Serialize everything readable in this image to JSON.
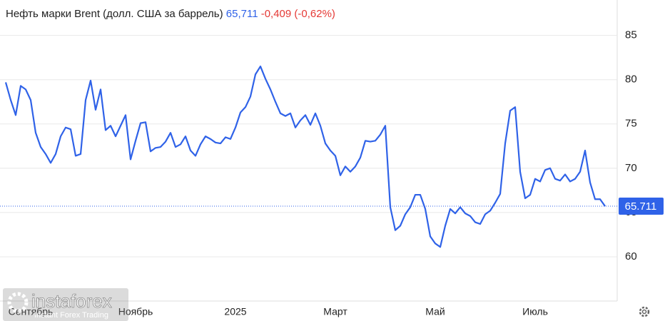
{
  "chart_data": {
    "type": "line",
    "title": "Нефть марки Brent (долл. США за баррель)",
    "price_text": "65,711",
    "change_text": "-0,409 (-0,62%)",
    "watermark": {
      "brand": "instaforex",
      "tagline": "Instant Forex Trading"
    },
    "color": "#2f62e8",
    "change_color": "#e53935",
    "grid": true,
    "ylim": [
      55,
      89
    ],
    "yticks": [
      60,
      65,
      70,
      75,
      80,
      85
    ],
    "categories": [
      null,
      null,
      null,
      null,
      null,
      "Сентябрь",
      null,
      null,
      null,
      null,
      null,
      null,
      null,
      null,
      null,
      null,
      null,
      null,
      null,
      null,
      null,
      null,
      null,
      null,
      null,
      null,
      "Ноябрь",
      null,
      null,
      null,
      null,
      null,
      null,
      null,
      null,
      null,
      null,
      null,
      null,
      null,
      null,
      null,
      null,
      null,
      null,
      null,
      "2025",
      null,
      null,
      null,
      null,
      null,
      null,
      null,
      null,
      null,
      null,
      null,
      null,
      null,
      null,
      null,
      null,
      null,
      null,
      null,
      "Март",
      null,
      null,
      null,
      null,
      null,
      null,
      null,
      null,
      null,
      null,
      null,
      null,
      null,
      null,
      null,
      null,
      null,
      null,
      null,
      "Май",
      null,
      null,
      null,
      null,
      null,
      null,
      null,
      null,
      null,
      null,
      null,
      null,
      null,
      null,
      null,
      null,
      null,
      null,
      null,
      "Июль",
      null,
      null,
      null,
      null,
      null,
      null,
      null,
      null,
      null,
      null,
      null,
      null,
      null,
      null
    ],
    "values": [
      79.7,
      77.7,
      76.0,
      79.3,
      78.9,
      77.7,
      74.0,
      72.4,
      71.6,
      70.6,
      71.6,
      73.6,
      74.6,
      74.4,
      71.4,
      71.6,
      77.7,
      79.9,
      76.6,
      78.9,
      74.3,
      74.8,
      73.6,
      74.8,
      76.0,
      71.0,
      73.1,
      75.1,
      75.2,
      71.9,
      72.3,
      72.4,
      73.0,
      74.0,
      72.4,
      72.7,
      73.6,
      72.0,
      71.4,
      72.7,
      73.6,
      73.3,
      72.9,
      72.8,
      73.5,
      73.3,
      74.6,
      76.3,
      76.9,
      78.1,
      80.6,
      81.5,
      80.1,
      78.9,
      77.5,
      76.2,
      75.9,
      76.2,
      74.6,
      75.4,
      76.0,
      74.9,
      76.2,
      74.8,
      72.8,
      72.0,
      71.4,
      69.2,
      70.2,
      69.6,
      70.2,
      71.2,
      73.1,
      73.0,
      73.1,
      73.8,
      74.8,
      65.6,
      63.0,
      63.5,
      64.8,
      65.6,
      67.0,
      67.0,
      65.4,
      62.3,
      61.5,
      61.1,
      63.5,
      65.4,
      64.9,
      65.6,
      64.9,
      64.6,
      63.9,
      63.7,
      64.8,
      65.2,
      66.1,
      67.1,
      72.8,
      76.5,
      76.9,
      69.6,
      66.6,
      67.0,
      68.8,
      68.5,
      69.8,
      70.0,
      68.8,
      68.6,
      69.3,
      68.5,
      68.8,
      69.6,
      72.0,
      68.4,
      66.5,
      66.5,
      65.711
    ]
  }
}
